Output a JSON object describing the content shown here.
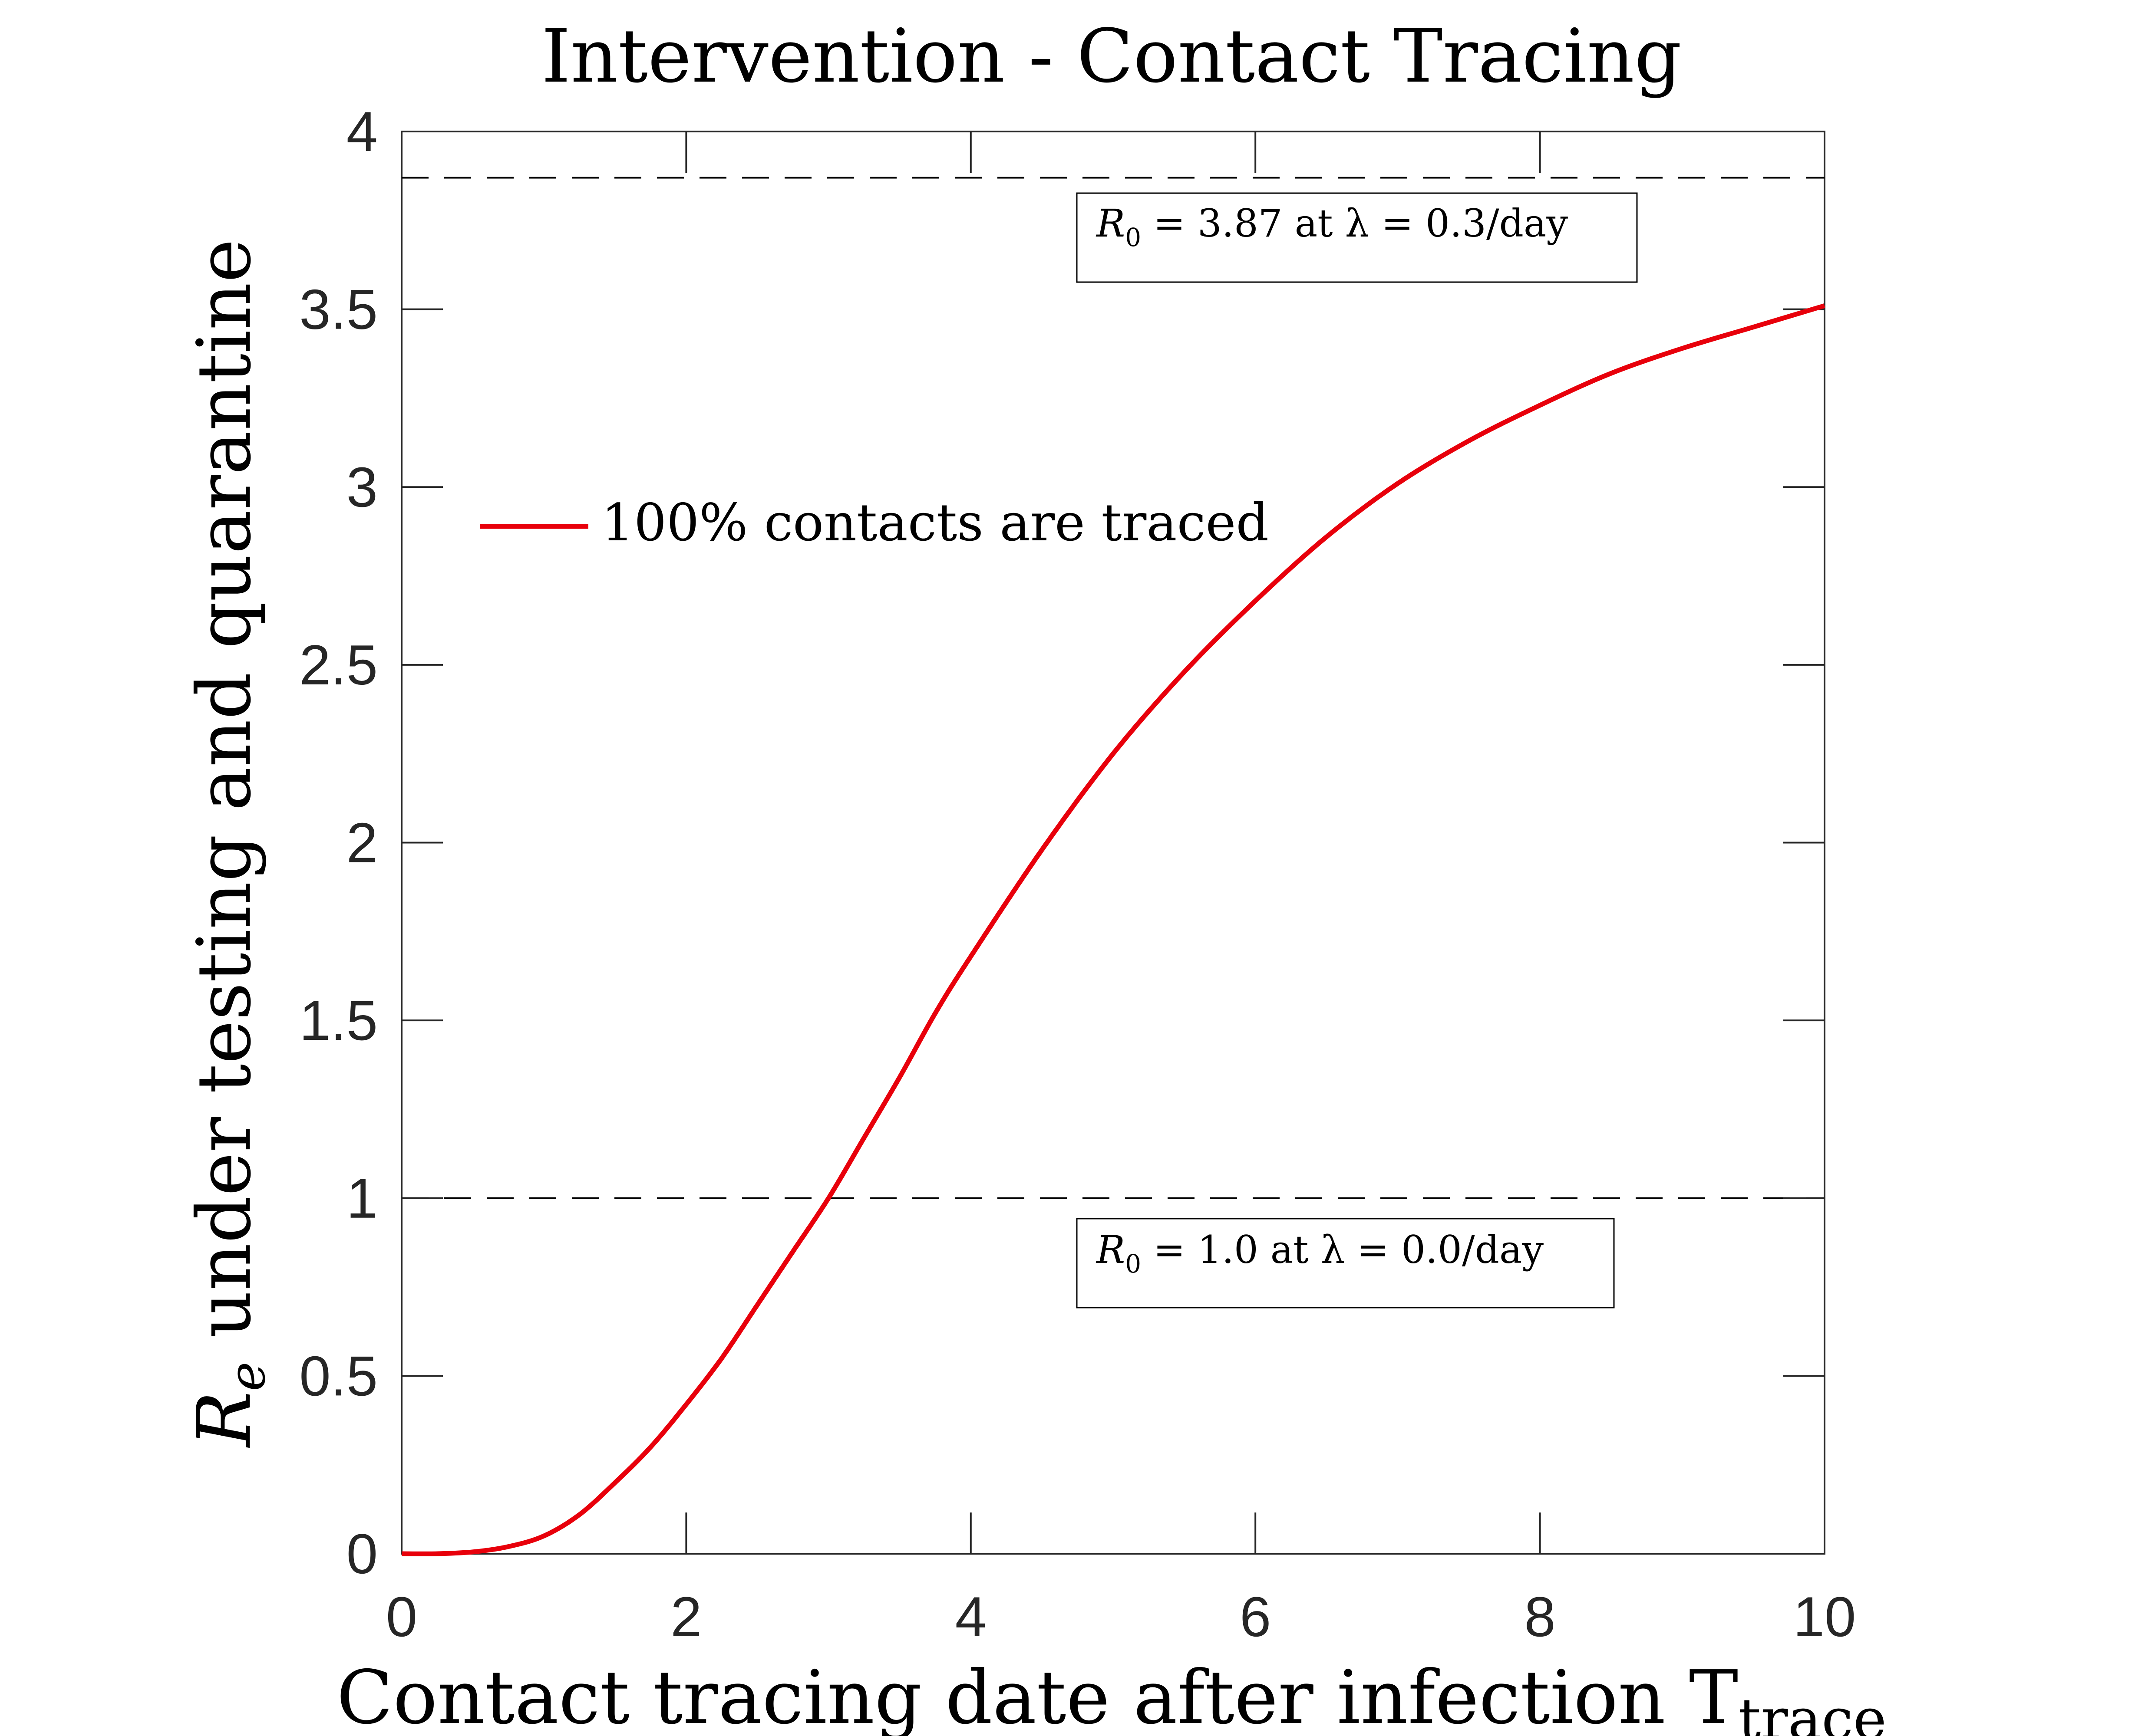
{
  "chart_data": {
    "type": "line",
    "title": "Intervention - Contact Tracing",
    "xlabel": "Contact tracing date after infection T",
    "xlabel_subscript": "trace",
    "ylabel": "R",
    "ylabel_subscript": "e",
    "ylabel_rest": " under testing and quarantine",
    "xlim": [
      0,
      10
    ],
    "ylim": [
      0,
      4
    ],
    "x_ticks": [
      0,
      2,
      4,
      6,
      8,
      10
    ],
    "x_tick_labels": [
      "0",
      "2",
      "4",
      "6",
      "8",
      "10"
    ],
    "y_ticks": [
      0,
      0.5,
      1,
      1.5,
      2,
      2.5,
      3,
      3.5,
      4
    ],
    "y_tick_labels": [
      "0",
      "0.5",
      "1",
      "1.5",
      "2",
      "2.5",
      "3",
      "3.5",
      "4"
    ],
    "grid": false,
    "legend_position": "upper-left",
    "series": [
      {
        "name": "100% contacts are traced",
        "color": "#e8000b",
        "x": [
          0,
          0.25,
          0.5,
          0.75,
          1.0,
          1.25,
          1.5,
          1.75,
          2.0,
          2.25,
          2.5,
          2.75,
          3.0,
          3.25,
          3.5,
          3.75,
          4.0,
          4.5,
          5.0,
          5.5,
          6.0,
          6.5,
          7.0,
          7.5,
          8.0,
          8.5,
          9.0,
          9.5,
          10.0
        ],
        "y": [
          0.0,
          0.0,
          0.005,
          0.02,
          0.05,
          0.11,
          0.2,
          0.3,
          0.42,
          0.55,
          0.7,
          0.85,
          1.0,
          1.17,
          1.34,
          1.52,
          1.68,
          1.98,
          2.25,
          2.48,
          2.68,
          2.86,
          3.01,
          3.13,
          3.23,
          3.32,
          3.39,
          3.45,
          3.51
        ]
      }
    ],
    "reference_lines": [
      {
        "y": 3.87,
        "style": "dashed",
        "color": "#000000"
      },
      {
        "y": 1.0,
        "style": "dashed",
        "color": "#000000"
      }
    ],
    "annotations": [
      {
        "id": "r0-high",
        "text_prefix": "R",
        "text_subscript": "0",
        "text": " = 3.87 at λ = 0.3/day"
      },
      {
        "id": "r0-low",
        "text_prefix": "R",
        "text_subscript": "0",
        "text": " = 1.0 at λ = 0.0/day"
      }
    ]
  }
}
